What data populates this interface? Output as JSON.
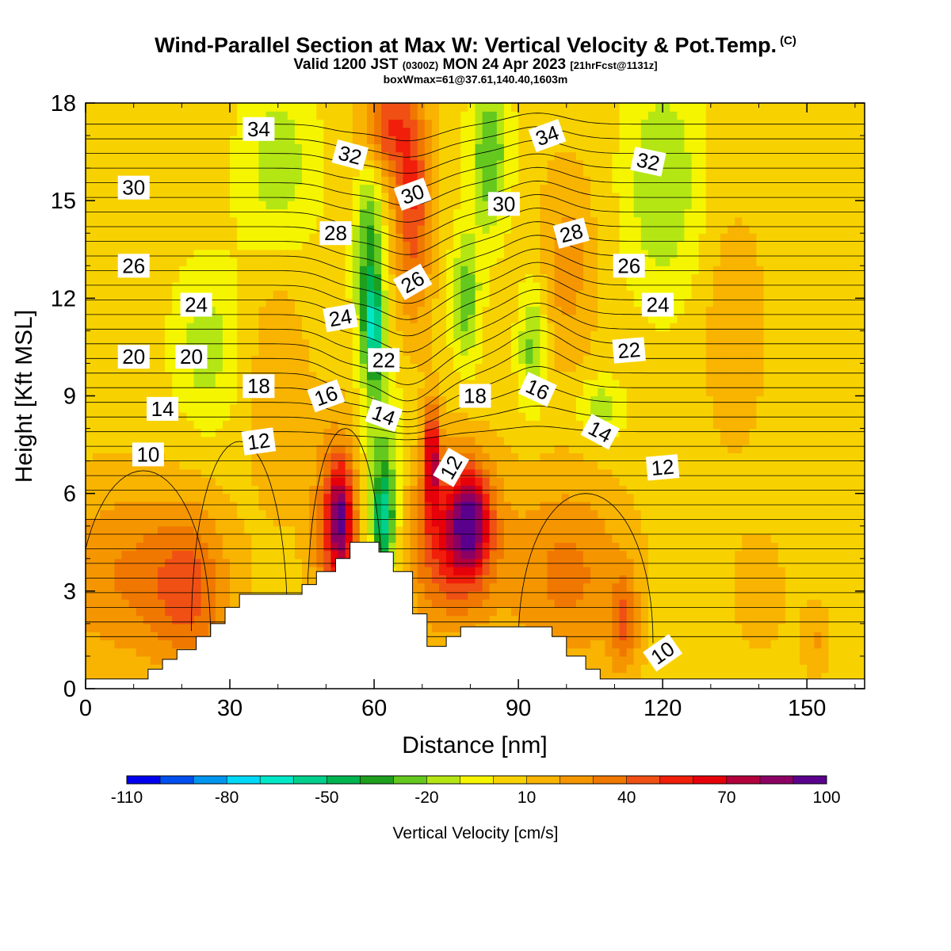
{
  "header": {
    "title_main": "Wind-Parallel Section at Max W: Vertical Velocity & Pot.Temp.",
    "title_copyright": "(C)",
    "subtitle_valid_a": "Valid 1200 JST",
    "subtitle_utc": "(0300Z)",
    "subtitle_valid_b": "MON 24 Apr 2023",
    "subtitle_fcst": "[21hrFcst@1131z]",
    "box_info": "boxWmax=61@37.61,140.40,1603m"
  },
  "chart_data": {
    "type": "heatmap",
    "xlabel": "Distance [nm]",
    "ylabel": "Height [Kft MSL]",
    "xlim": [
      0,
      162
    ],
    "ylim": [
      0,
      18
    ],
    "xticks": [
      0,
      30,
      60,
      90,
      120,
      150
    ],
    "yticks": [
      0,
      3,
      6,
      9,
      12,
      15,
      18
    ],
    "colorbar": {
      "label": "Vertical Velocity [cm/s]",
      "min": -110,
      "max": 100,
      "step": 10,
      "tick_labels": [
        "-110",
        "-80",
        "-50",
        "-20",
        "10",
        "40",
        "70",
        "100"
      ],
      "colors": [
        "#0000ee",
        "#0050f0",
        "#0096f0",
        "#00d8f8",
        "#00e8c8",
        "#00d08c",
        "#00b450",
        "#1ea01e",
        "#64c81e",
        "#b4e614",
        "#f5f500",
        "#f8d200",
        "#f8b400",
        "#f59600",
        "#f07800",
        "#f05014",
        "#f01e0a",
        "#e6000a",
        "#b4003c",
        "#8c0064",
        "#5a008c"
      ]
    },
    "terrain_heights_kft": [
      [
        0,
        0.3
      ],
      [
        13,
        0.3
      ],
      [
        13,
        0.6
      ],
      [
        16,
        0.6
      ],
      [
        16,
        0.9
      ],
      [
        19,
        0.9
      ],
      [
        19,
        1.2
      ],
      [
        23,
        1.2
      ],
      [
        23,
        1.6
      ],
      [
        26,
        1.6
      ],
      [
        26,
        2.0
      ],
      [
        29,
        2.0
      ],
      [
        29,
        2.5
      ],
      [
        32,
        2.5
      ],
      [
        32,
        2.9
      ],
      [
        45,
        2.9
      ],
      [
        45,
        3.2
      ],
      [
        48,
        3.2
      ],
      [
        48,
        3.6
      ],
      [
        52,
        3.6
      ],
      [
        52,
        4.0
      ],
      [
        55,
        4.0
      ],
      [
        55,
        4.5
      ],
      [
        61,
        4.5
      ],
      [
        61,
        4.2
      ],
      [
        64,
        4.2
      ],
      [
        64,
        3.6
      ],
      [
        68,
        3.6
      ],
      [
        68,
        2.3
      ],
      [
        71,
        2.3
      ],
      [
        71,
        1.3
      ],
      [
        75,
        1.3
      ],
      [
        75,
        1.6
      ],
      [
        78,
        1.6
      ],
      [
        78,
        1.9
      ],
      [
        97,
        1.9
      ],
      [
        97,
        1.6
      ],
      [
        100,
        1.6
      ],
      [
        100,
        1.0
      ],
      [
        104,
        1.0
      ],
      [
        104,
        0.6
      ],
      [
        107,
        0.6
      ],
      [
        107,
        0.3
      ],
      [
        162,
        0.3
      ]
    ],
    "wind_cells": [
      {
        "x": 8,
        "y": 3.5,
        "w": 25,
        "rx": 16,
        "ry": 3.0
      },
      {
        "x": 22,
        "y": 3.0,
        "w": 30,
        "rx": 8,
        "ry": 2.5
      },
      {
        "x": 52,
        "y": 4.8,
        "w": 40,
        "rx": 5,
        "ry": 3.2
      },
      {
        "x": 53,
        "y": 5.3,
        "w": 55,
        "rx": 2.5,
        "ry": 1.6
      },
      {
        "x": 62,
        "y": 6.2,
        "w": -30,
        "rx": 4,
        "ry": 3.5
      },
      {
        "x": 62,
        "y": 5.2,
        "w": -42,
        "rx": 2.0,
        "ry": 1.4
      },
      {
        "x": 59,
        "y": 13.0,
        "w": -40,
        "rx": 3,
        "ry": 3.5
      },
      {
        "x": 60,
        "y": 11.0,
        "w": -45,
        "rx": 1.8,
        "ry": 1.4
      },
      {
        "x": 40,
        "y": 16.0,
        "w": -22,
        "rx": 8,
        "ry": 3.0
      },
      {
        "x": 76,
        "y": 4.6,
        "w": 52,
        "rx": 9,
        "ry": 2.6
      },
      {
        "x": 80,
        "y": 5.2,
        "w": 58,
        "rx": 4,
        "ry": 1.5
      },
      {
        "x": 72,
        "y": 7.2,
        "w": 60,
        "rx": 1.6,
        "ry": 1.6
      },
      {
        "x": 68,
        "y": 15.0,
        "w": 45,
        "rx": 4,
        "ry": 3.5
      },
      {
        "x": 62,
        "y": 17.3,
        "w": 42,
        "rx": 5,
        "ry": 1.6
      },
      {
        "x": 79,
        "y": 12.0,
        "w": -32,
        "rx": 3,
        "ry": 2.0
      },
      {
        "x": 84,
        "y": 16.5,
        "w": -35,
        "rx": 4,
        "ry": 2.5
      },
      {
        "x": 93,
        "y": 10.5,
        "w": -30,
        "rx": 3,
        "ry": 2.0
      },
      {
        "x": 107,
        "y": 8.6,
        "w": -22,
        "rx": 5,
        "ry": 1.0
      },
      {
        "x": 120,
        "y": 15.5,
        "w": -25,
        "rx": 8,
        "ry": 3.5
      },
      {
        "x": 100,
        "y": 3.5,
        "w": 28,
        "rx": 13,
        "ry": 3.0
      },
      {
        "x": 112,
        "y": 2.0,
        "w": 30,
        "rx": 3,
        "ry": 1.5
      },
      {
        "x": 135,
        "y": 11.0,
        "w": 15,
        "rx": 6,
        "ry": 3.5
      },
      {
        "x": 140,
        "y": 3.0,
        "w": 8,
        "rx": 8,
        "ry": 2.5
      },
      {
        "x": 25,
        "y": 10.5,
        "w": -20,
        "rx": 7,
        "ry": 2.5
      },
      {
        "x": 40,
        "y": 9.5,
        "w": 15,
        "rx": 6,
        "ry": 4.0
      },
      {
        "x": 100,
        "y": 13.0,
        "w": 20,
        "rx": 6,
        "ry": 3.0
      },
      {
        "x": 152,
        "y": 1.5,
        "w": 15,
        "rx": 3,
        "ry": 1.2
      }
    ],
    "contour_labels": [
      {
        "text": "34",
        "x": 36,
        "y": 17.2,
        "rot": 0
      },
      {
        "text": "34",
        "x": 96,
        "y": 17.0,
        "rot": -20
      },
      {
        "text": "32",
        "x": 55,
        "y": 16.4,
        "rot": 15
      },
      {
        "text": "32",
        "x": 117,
        "y": 16.2,
        "rot": 12
      },
      {
        "text": "30",
        "x": 10,
        "y": 15.4,
        "rot": 0
      },
      {
        "text": "30",
        "x": 68,
        "y": 15.2,
        "rot": -20
      },
      {
        "text": "30",
        "x": 87,
        "y": 14.9,
        "rot": 0
      },
      {
        "text": "28",
        "x": 52,
        "y": 14.0,
        "rot": 0
      },
      {
        "text": "28",
        "x": 101,
        "y": 14.0,
        "rot": -15
      },
      {
        "text": "26",
        "x": 10,
        "y": 13.0,
        "rot": 0
      },
      {
        "text": "26",
        "x": 113,
        "y": 13.0,
        "rot": 0
      },
      {
        "text": "26",
        "x": 68,
        "y": 12.5,
        "rot": -30
      },
      {
        "text": "24",
        "x": 23,
        "y": 11.8,
        "rot": 0
      },
      {
        "text": "24",
        "x": 119,
        "y": 11.8,
        "rot": 0
      },
      {
        "text": "24",
        "x": 53,
        "y": 11.4,
        "rot": -10
      },
      {
        "text": "20",
        "x": 10,
        "y": 10.2,
        "rot": 0
      },
      {
        "text": "20",
        "x": 22,
        "y": 10.2,
        "rot": 0
      },
      {
        "text": "22",
        "x": 62,
        "y": 10.1,
        "rot": 0
      },
      {
        "text": "22",
        "x": 113,
        "y": 10.4,
        "rot": -5
      },
      {
        "text": "18",
        "x": 36,
        "y": 9.3,
        "rot": 0
      },
      {
        "text": "18",
        "x": 81,
        "y": 9.0,
        "rot": 0
      },
      {
        "text": "16",
        "x": 50,
        "y": 9.0,
        "rot": -20
      },
      {
        "text": "16",
        "x": 94,
        "y": 9.2,
        "rot": 25
      },
      {
        "text": "14",
        "x": 16,
        "y": 8.6,
        "rot": 0
      },
      {
        "text": "14",
        "x": 62,
        "y": 8.4,
        "rot": 20
      },
      {
        "text": "14",
        "x": 107,
        "y": 7.9,
        "rot": 28
      },
      {
        "text": "12",
        "x": 36,
        "y": 7.6,
        "rot": -8
      },
      {
        "text": "12",
        "x": 76,
        "y": 6.8,
        "rot": -60
      },
      {
        "text": "12",
        "x": 120,
        "y": 6.8,
        "rot": -5
      },
      {
        "text": "10",
        "x": 13,
        "y": 7.2,
        "rot": 0
      },
      {
        "text": "10",
        "x": 120,
        "y": 1.1,
        "rot": -35
      }
    ]
  }
}
